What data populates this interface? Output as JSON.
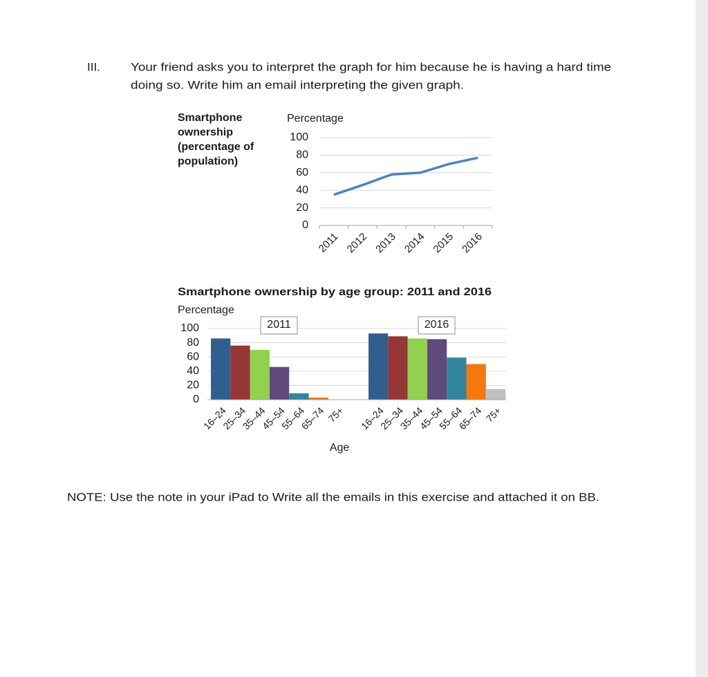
{
  "question": {
    "number": "III.",
    "lines": [
      "Your friend asks you to interpret the graph for him because he is having a hard time",
      "doing so. Write him an email interpreting the given graph."
    ]
  },
  "chart_data": [
    {
      "type": "line",
      "title": "Smartphone ownership (percentage of population)",
      "y_label": "Percentage",
      "categories": [
        "2011",
        "2012",
        "2013",
        "2014",
        "2015",
        "2016"
      ],
      "values": [
        35,
        46,
        58,
        60,
        70,
        77
      ],
      "color": "#4f81bd",
      "ylim": [
        0,
        100
      ],
      "yticks": [
        0,
        20,
        40,
        60,
        80,
        100
      ],
      "grid": true
    },
    {
      "type": "bar",
      "title": "Smartphone ownership by age group: 2011 and 2016",
      "y_label": "Percentage",
      "x_label": "Age",
      "categories": [
        "16–24",
        "25–34",
        "35–44",
        "45–54",
        "55–64",
        "65–74",
        "75+"
      ],
      "colors": [
        "#2f5f8f",
        "#953735",
        "#92d050",
        "#604a7b",
        "#31859c",
        "#f5780f",
        "#bfbfbf"
      ],
      "panels": [
        {
          "label": "2011",
          "values": [
            86,
            76,
            70,
            46,
            9,
            3,
            0
          ]
        },
        {
          "label": "2016",
          "values": [
            93,
            89,
            86,
            85,
            59,
            50,
            15
          ]
        }
      ],
      "ylim": [
        0,
        100
      ],
      "yticks": [
        0,
        20,
        40,
        60,
        80,
        100
      ],
      "grid": true
    }
  ],
  "note": "NOTE: Use the note in your iPad to Write all the emails in this exercise and attached it on BB."
}
